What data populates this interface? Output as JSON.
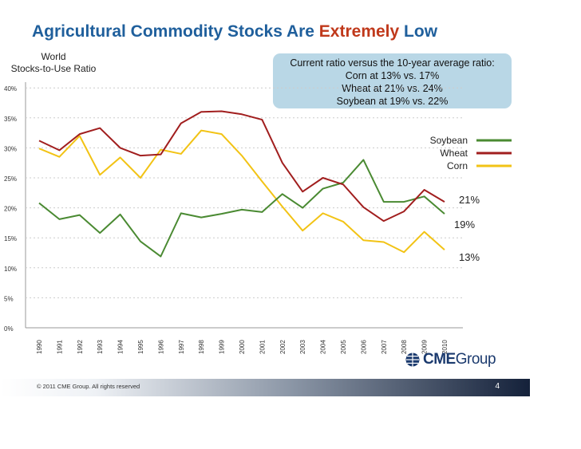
{
  "slide": {
    "title_main": "Agricultural Commodity Stocks Are ",
    "title_accent": "Extremely",
    "title_tail": " Low",
    "copyright": "© 2011 CME Group. All rights reserved",
    "page_number": "4",
    "logo_cme": "CME",
    "logo_group": "Group"
  },
  "callout": {
    "lines": [
      "Current ratio versus the 10-year average ratio:",
      "Corn at 13% vs. 17%",
      "Wheat at 21% vs. 24%",
      "Soybean at 19% vs. 22%"
    ]
  },
  "colors": {
    "title": "#1f5f9c",
    "accent": "#c0391b",
    "soybean": "#4a8a32",
    "wheat": "#a11e1e",
    "corn": "#f2c315",
    "callout_bg": "#b9d7e6",
    "grid": "#cccccc"
  },
  "chart_data": {
    "type": "line",
    "title": "Agricultural Commodity Stocks Are Extremely Low",
    "ylabel_line1": "World",
    "ylabel_line2": "Stocks-to-Use Ratio",
    "xlabel": "",
    "ylim": [
      0,
      40
    ],
    "yticks": [
      "0%",
      "5%",
      "10%",
      "15%",
      "20%",
      "25%",
      "30%",
      "35%",
      "40%"
    ],
    "x": [
      "1990",
      "1991",
      "1992",
      "1993",
      "1994",
      "1995",
      "1996",
      "1997",
      "1998",
      "1999",
      "2000",
      "2001",
      "2002",
      "2003",
      "2004",
      "2005",
      "2006",
      "2007",
      "2008",
      "2009",
      "2010"
    ],
    "series": [
      {
        "name": "Soybean",
        "color": "#4a8a32",
        "end_label": "19%",
        "values": [
          20.8,
          18.1,
          18.8,
          15.8,
          18.9,
          14.4,
          11.9,
          19.1,
          18.4,
          19.0,
          19.7,
          19.3,
          22.3,
          20.0,
          23.2,
          24.2,
          28.0,
          21.0,
          21.0,
          21.9,
          19.0
        ]
      },
      {
        "name": "Wheat",
        "color": "#a11e1e",
        "end_label": "21%",
        "values": [
          31.2,
          29.6,
          32.3,
          33.3,
          30.0,
          28.7,
          28.9,
          34.1,
          36.0,
          36.1,
          35.6,
          34.7,
          27.5,
          22.7,
          25.0,
          23.9,
          20.1,
          17.8,
          19.4,
          23.0,
          21.0
        ]
      },
      {
        "name": "Corn",
        "color": "#f2c315",
        "end_label": "13%",
        "values": [
          29.9,
          28.5,
          32.0,
          25.5,
          28.4,
          25.0,
          29.7,
          29.0,
          32.9,
          32.3,
          28.7,
          24.4,
          20.2,
          16.2,
          19.1,
          17.7,
          14.6,
          14.3,
          12.6,
          16.0,
          13.0
        ]
      }
    ],
    "legend": [
      "Soybean",
      "Wheat",
      "Corn"
    ],
    "legend_position": "right",
    "grid": "horizontal dashed"
  }
}
